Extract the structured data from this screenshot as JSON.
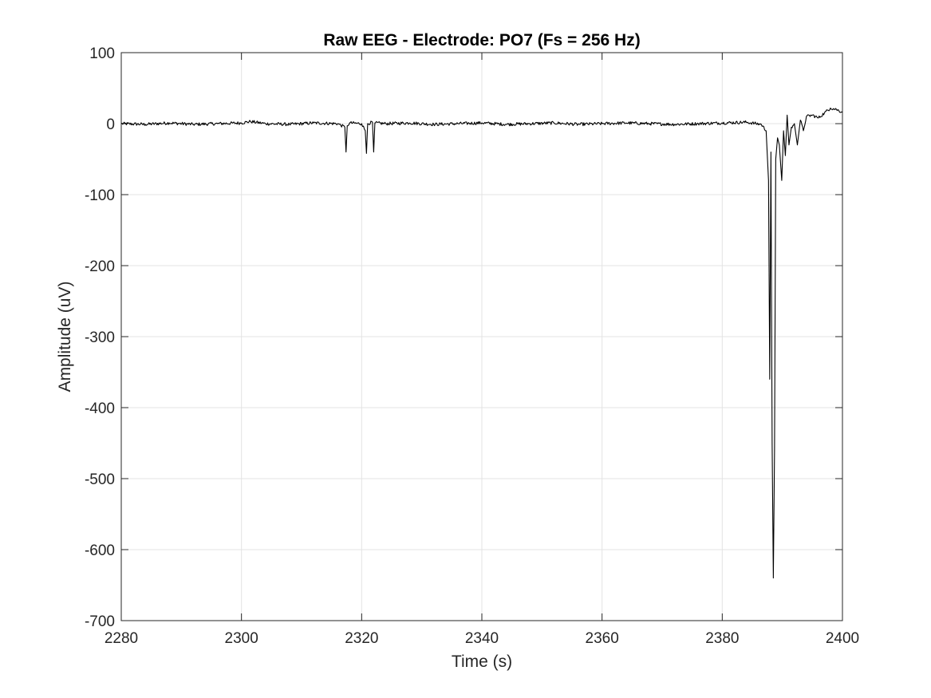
{
  "chart_data": {
    "type": "line",
    "title": "Raw EEG - Electrode: PO7 (Fs = 256 Hz)",
    "xlabel": "Time (s)",
    "ylabel": "Amplitude (uV)",
    "xlim": [
      2280,
      2400
    ],
    "ylim": [
      -700,
      100
    ],
    "xticks": [
      2280,
      2300,
      2320,
      2340,
      2360,
      2380,
      2400
    ],
    "yticks": [
      100,
      0,
      -100,
      -200,
      -300,
      -400,
      -500,
      -600,
      -700
    ],
    "grid": true,
    "line_color": "#000000",
    "series": [
      {
        "name": "",
        "x": [
          2280,
          2284,
          2288,
          2292,
          2296,
          2300,
          2301.5,
          2304,
          2308,
          2312,
          2316,
          2317.2,
          2317.4,
          2317.6,
          2318,
          2320,
          2320.6,
          2320.8,
          2321,
          2321.8,
          2322,
          2322.2,
          2324,
          2328,
          2332,
          2336,
          2340,
          2344,
          2348,
          2352,
          2356,
          2360,
          2364,
          2368,
          2372,
          2376,
          2380,
          2384,
          2386.5,
          2387.3,
          2387.7,
          2387.9,
          2388.1,
          2388.3,
          2388.5,
          2388.7,
          2388.9,
          2389.2,
          2389.5,
          2389.9,
          2390.2,
          2390.5,
          2390.8,
          2391.1,
          2391.5,
          2392,
          2392.5,
          2393,
          2393.5,
          2394,
          2395,
          2396,
          2397,
          2398,
          2399,
          2400
        ],
        "y": [
          0,
          -1,
          1,
          -1,
          0,
          1,
          3,
          0,
          -1,
          1,
          0,
          -5,
          -40,
          -3,
          1,
          0,
          -10,
          -42,
          0,
          2,
          -40,
          1,
          0,
          1,
          -1,
          0,
          1,
          -1,
          0,
          1,
          -1,
          0,
          1,
          0,
          -1,
          0,
          1,
          2,
          -1,
          -10,
          -80,
          -360,
          -40,
          -450,
          -640,
          -460,
          -50,
          -20,
          -30,
          -80,
          -10,
          -45,
          12,
          -30,
          -5,
          0,
          -30,
          5,
          -10,
          10,
          12,
          8,
          15,
          22,
          20,
          16
        ]
      }
    ]
  }
}
